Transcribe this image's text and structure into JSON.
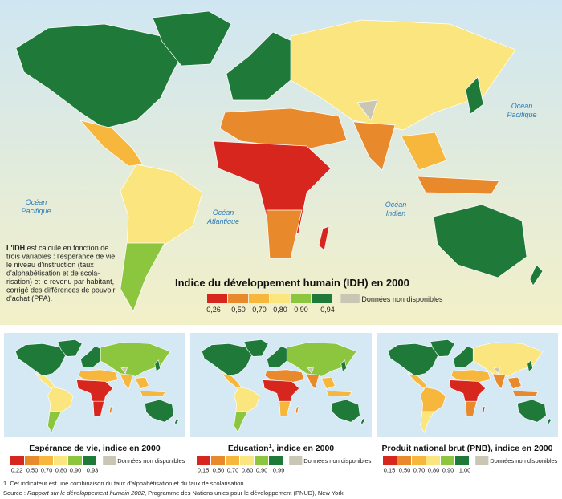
{
  "main": {
    "title": "Indice du développement humain (IDH) en 2000",
    "note": {
      "lead": "L'IDH",
      "lines": [
        " est calculé en fonction de",
        "trois variables : l'espérance de vie,",
        "le niveau d'instruction (taux",
        "d'alphabétisation et de scola-",
        "risation) et le revenu par habitant,",
        "corrigé des différences de pouvoir",
        "d'achat (PPA)."
      ]
    },
    "legend": {
      "labels": [
        "0,26",
        "0,50",
        "0,70",
        "0,80",
        "0,90",
        "0,94"
      ],
      "colors": [
        "#d7261e",
        "#e8892b",
        "#f6b73c",
        "#fbe57f",
        "#8cc63f",
        "#1f7a3a"
      ],
      "na_color": "#c9c6b4",
      "na": "Données non disponibles"
    }
  },
  "oceans": [
    {
      "lines": [
        "Océan",
        "Pacifique"
      ]
    },
    {
      "lines": [
        "Océan",
        "Pacifique"
      ]
    },
    {
      "lines": [
        "Océan",
        "Atlantique"
      ]
    },
    {
      "lines": [
        "Océan",
        "Indien"
      ]
    }
  ],
  "panels": [
    {
      "title": [
        "Espérance de vie, indice en 2000"
      ],
      "labels": [
        "0,22",
        "0,50",
        "0,70",
        "0,80",
        "0,90",
        "0,93"
      ],
      "na": "Données non disponibles"
    },
    {
      "title": [
        "Education",
        "1",
        ", indice en 2000"
      ],
      "labels": [
        "0,15",
        "0,50",
        "0,70",
        "0,80",
        "0,90",
        "0,99"
      ],
      "na": "Données non disponibles"
    },
    {
      "title": [
        "Produit national brut (PNB), indice en 2000"
      ],
      "labels": [
        "0,15",
        "0,50",
        "0,70",
        "0,80",
        "0,90",
        "1,00"
      ],
      "na": "Données non disponibles"
    }
  ],
  "footnote": "1. Cet indicateur est une combinaison du taux d'alphabétisation et du taux de scolarisation.",
  "source": [
    "Source : ",
    "Rapport sur le développement humain 2002",
    ", Programme des Nations unies pour le développement (PNUD), New York."
  ]
}
